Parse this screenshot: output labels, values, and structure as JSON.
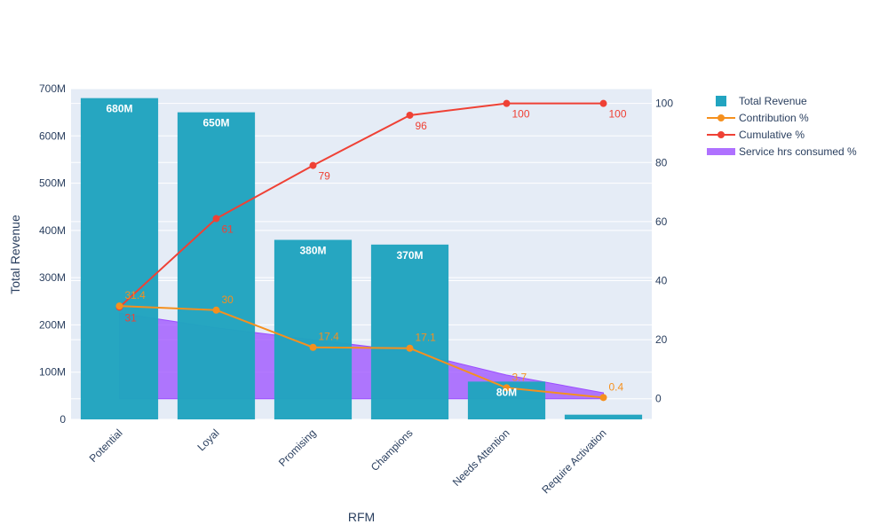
{
  "chart_data": {
    "type": "bar",
    "categories": [
      "Potential",
      "Loyal",
      "Promising",
      "Champions",
      "Needs Attention",
      "Require Activation"
    ],
    "xlabel": "RFM",
    "ylabel": "Total Revenue",
    "y_left_lim": [
      0,
      700000000
    ],
    "y_left_ticks": [
      "0",
      "100M",
      "200M",
      "300M",
      "400M",
      "500M",
      "600M",
      "700M"
    ],
    "y_right_lim": [
      -7,
      105
    ],
    "y_right_ticks": [
      "0",
      "20",
      "40",
      "60",
      "80",
      "100"
    ],
    "grid": true,
    "legend_position": "top-right",
    "series": [
      {
        "name": "Total Revenue",
        "type": "bar",
        "axis": "left",
        "color": "#22a4c0",
        "values": [
          680000000,
          650000000,
          380000000,
          370000000,
          80000000,
          10000000
        ],
        "labels": [
          "680M",
          "650M",
          "380M",
          "370M",
          "80M",
          ""
        ]
      },
      {
        "name": "Contribution %",
        "type": "line",
        "axis": "right",
        "color": "#f5901e",
        "values": [
          31.4,
          30,
          17.4,
          17.1,
          3.7,
          0.4
        ],
        "labels": [
          "31.4",
          "30",
          "17.4",
          "17.1",
          "3.7",
          "0.4"
        ]
      },
      {
        "name": "Cumulative %",
        "type": "line",
        "axis": "right",
        "color": "#ef4135",
        "values": [
          31,
          61,
          79,
          96,
          100,
          100
        ],
        "labels": [
          "31",
          "61",
          "79",
          "96",
          "100",
          "100"
        ]
      },
      {
        "name": "Service hrs consumed %",
        "type": "area",
        "axis": "right",
        "color": "#9b4dff",
        "values": [
          29,
          24,
          20,
          16,
          8,
          2
        ],
        "labels": []
      }
    ]
  }
}
